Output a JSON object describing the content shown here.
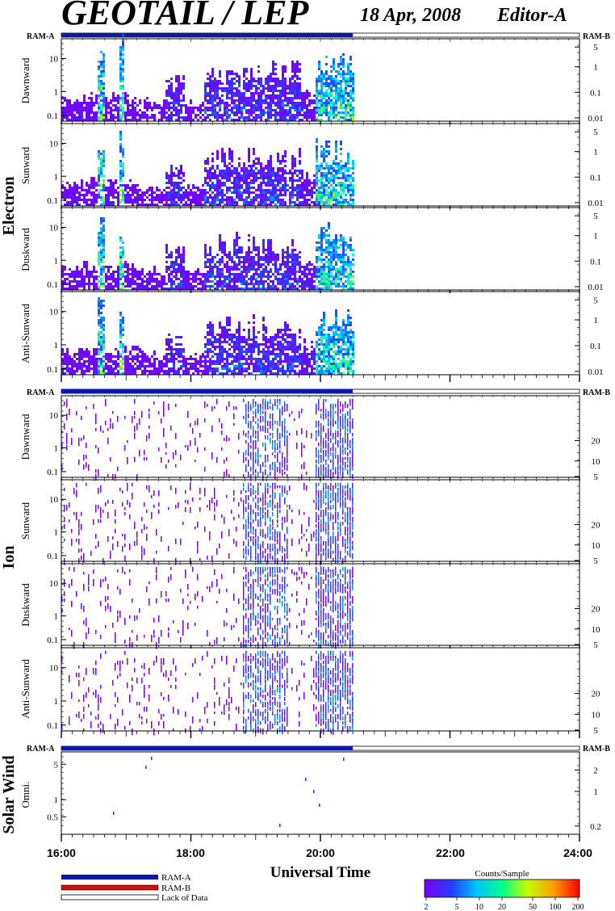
{
  "header": {
    "instrument": "GEOTAIL / LEP",
    "date": "18 Apr, 2008",
    "editor": "Editor-A"
  },
  "sections": [
    {
      "title": "Electron",
      "ram_left": "RAM-A",
      "ram_right": "RAM-B",
      "panels": [
        {
          "label": "Dawnward",
          "left_ticks": [
            "10",
            "1",
            "0.1"
          ],
          "right_ticks": [
            "5",
            "1",
            "0.1",
            "0.01"
          ]
        },
        {
          "label": "Sunward",
          "left_ticks": [
            "10",
            "1",
            "0.1"
          ],
          "right_ticks": [
            "5",
            "1",
            "0.1",
            "0.01"
          ]
        },
        {
          "label": "Duskward",
          "left_ticks": [
            "10",
            "1",
            "0.1"
          ],
          "right_ticks": [
            "5",
            "1",
            "0.1",
            "0.01"
          ]
        },
        {
          "label": "Anti-Sunward",
          "left_ticks": [
            "10",
            "1",
            "0.1"
          ],
          "right_ticks": [
            "5",
            "1",
            "0.1",
            "0.01"
          ]
        }
      ]
    },
    {
      "title": "Ion",
      "ram_left": "RAM-A",
      "ram_right": "RAM-B",
      "panels": [
        {
          "label": "Dawnward",
          "left_ticks": [
            "10",
            "1",
            "0.1"
          ],
          "right_ticks": [
            "20",
            "10",
            "5"
          ]
        },
        {
          "label": "Sunward",
          "left_ticks": [
            "10",
            "1",
            "0.1"
          ],
          "right_ticks": [
            "20",
            "10",
            "5"
          ]
        },
        {
          "label": "Duskward",
          "left_ticks": [
            "10",
            "1",
            "0.1"
          ],
          "right_ticks": [
            "20",
            "10",
            "5"
          ]
        },
        {
          "label": "Anti-Sunward",
          "left_ticks": [
            "10",
            "1",
            "0.1"
          ],
          "right_ticks": [
            "20",
            "10",
            "5"
          ]
        }
      ]
    },
    {
      "title": "Solar Wind",
      "ram_left": "RAM-A",
      "ram_right": "RAM-B",
      "panels": [
        {
          "label": "Omni.",
          "left_ticks": [
            "5",
            "1",
            "0.5"
          ],
          "right_ticks": [
            "2",
            "1",
            "0.2"
          ]
        }
      ]
    }
  ],
  "chart_data": {
    "type": "heatmap",
    "title": "GEOTAIL / LEP",
    "xlabel": "Universal Time",
    "x_ticks": [
      "16:00",
      "18:00",
      "20:00",
      "22:00",
      "24:00"
    ],
    "x_range_hours": [
      16,
      24
    ],
    "data_coverage_hours": [
      16.0,
      20.5
    ],
    "status_bar": {
      "ram_a_hours": [
        16.0,
        20.5
      ],
      "lack_of_data_hours": [
        20.5,
        24.0
      ]
    },
    "left_axis_scale": "log",
    "colorbar": {
      "label": "Counts/Sample",
      "ticks": [
        "2",
        "5",
        "10",
        "20",
        "50",
        "100",
        "200"
      ],
      "colors": [
        "#7a00ff",
        "#2040ff",
        "#00c0ff",
        "#00ff90",
        "#c0ff00",
        "#ffa000",
        "#ff0000"
      ]
    },
    "legend": [
      {
        "label": "RAM-A",
        "color": "#0a1aa8"
      },
      {
        "label": "RAM-B",
        "color": "#d01010"
      },
      {
        "label": "Lack of Data",
        "color": "#ffffff"
      }
    ]
  }
}
